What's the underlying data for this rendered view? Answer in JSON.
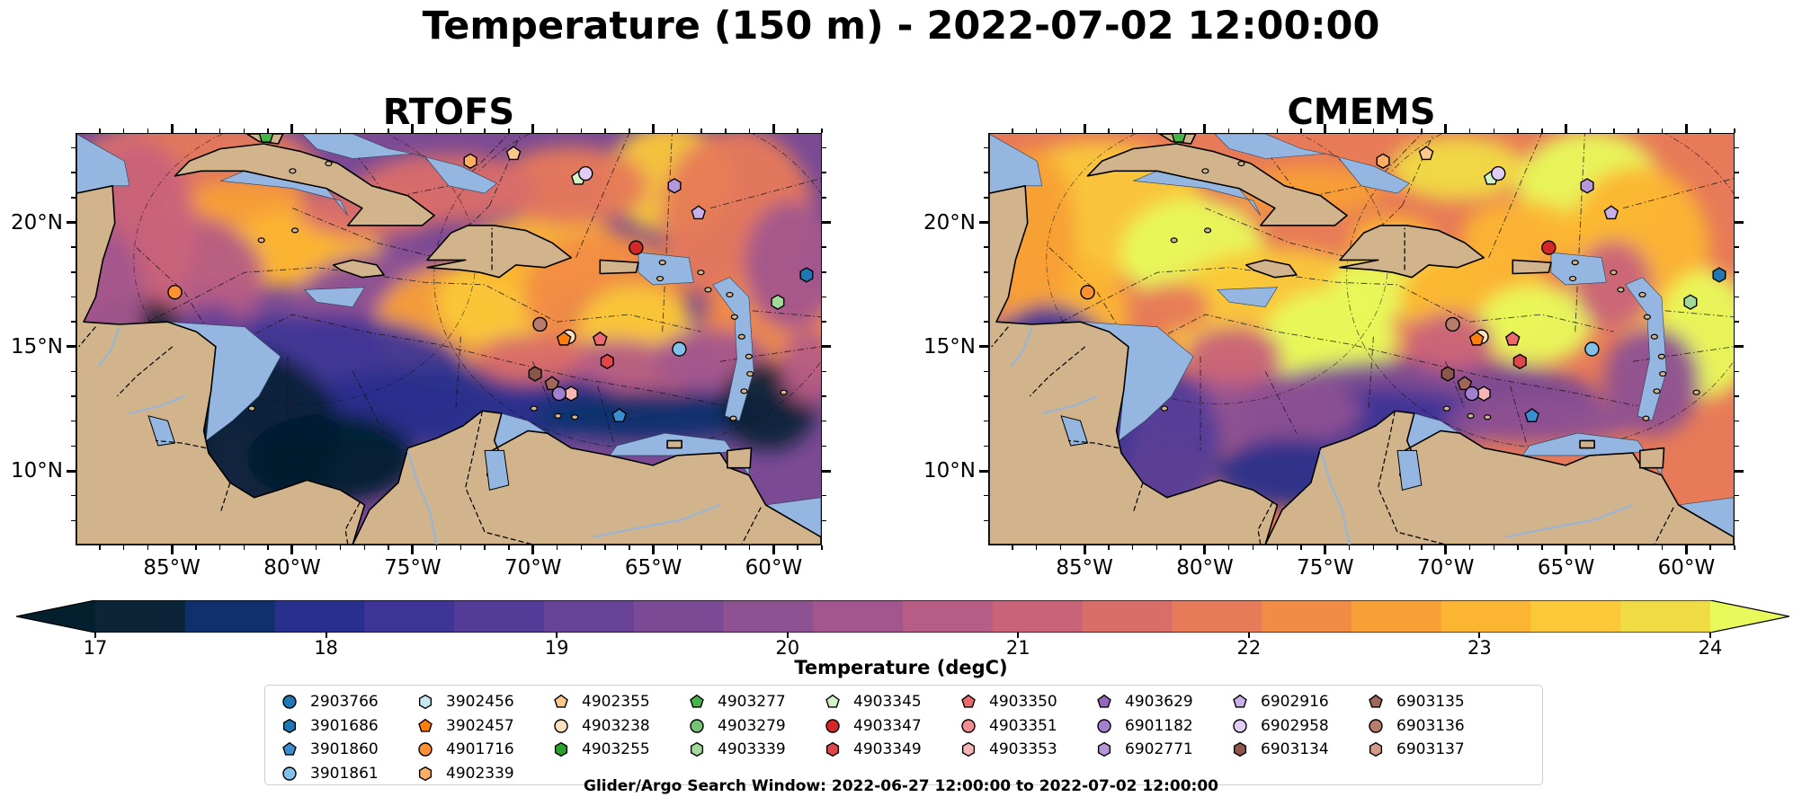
{
  "figure": {
    "title": "Temperature (150 m) - 2022-07-02 12:00:00",
    "search_window": "Glider/Argo Search Window: 2022-06-27 12:00:00 to 2022-07-02 12:00:00"
  },
  "panels": [
    {
      "title": "RTOFS",
      "model": "rtofs"
    },
    {
      "title": "CMEMS",
      "model": "cmems"
    }
  ],
  "axes": {
    "lat_ticks": [
      "20°N",
      "15°N",
      "10°N"
    ],
    "lat_values": [
      20,
      15,
      10
    ],
    "lon_ticks": [
      "85°W",
      "80°W",
      "75°W",
      "70°W",
      "65°W",
      "60°W"
    ],
    "lon_values": [
      -85,
      -80,
      -75,
      -70,
      -65,
      -60
    ],
    "lon_range": [
      -89,
      -58
    ],
    "lat_range": [
      7,
      23.6
    ]
  },
  "colors": {
    "ocean_shallow": "#94b6e0",
    "land": "#d2b48c",
    "rivers": "#9ab4d4"
  },
  "colorbar": {
    "label": "Temperature (degC)",
    "ticks": [
      "17",
      "18",
      "19",
      "20",
      "21",
      "22",
      "23",
      "24"
    ],
    "tick_values": [
      17,
      18,
      19,
      20,
      21,
      22,
      23,
      24
    ],
    "range": [
      17,
      24
    ],
    "extend": "both",
    "colormap": "thermal",
    "levels": [
      "#0b2438",
      "#10306d",
      "#282f8c",
      "#3e3596",
      "#533b98",
      "#674296",
      "#7a4a94",
      "#8e5192",
      "#a3568d",
      "#b65c85",
      "#c9637a",
      "#d96d6a",
      "#e77a58",
      "#f28c45",
      "#f89f36",
      "#fcb532",
      "#fac838",
      "#f1db44"
    ],
    "under_color": "#04202f",
    "over_color": "#e8fa5b"
  },
  "legend": {
    "items": [
      {
        "id": "2903766",
        "shape": "circle",
        "color": "#1f77b4"
      },
      {
        "id": "3901686",
        "shape": "hexagon",
        "color": "#1f77b4"
      },
      {
        "id": "3901860",
        "shape": "pentagon",
        "color": "#3a8fd0"
      },
      {
        "id": "3901861",
        "shape": "circle",
        "color": "#82c0ea"
      },
      {
        "id": "3902456",
        "shape": "hexagon",
        "color": "#c7e9f4"
      },
      {
        "id": "3902457",
        "shape": "pentagon",
        "color": "#ff7f0e"
      },
      {
        "id": "4901716",
        "shape": "circle",
        "color": "#fd9131"
      },
      {
        "id": "4902339",
        "shape": "hexagon",
        "color": "#fdae62"
      },
      {
        "id": "4902355",
        "shape": "pentagon",
        "color": "#fdc88b"
      },
      {
        "id": "4903238",
        "shape": "circle",
        "color": "#fde0bd"
      },
      {
        "id": "4903255",
        "shape": "hexagon",
        "color": "#2ca02c"
      },
      {
        "id": "4903277",
        "shape": "pentagon",
        "color": "#47b447"
      },
      {
        "id": "4903279",
        "shape": "circle",
        "color": "#74c476"
      },
      {
        "id": "4903339",
        "shape": "hexagon",
        "color": "#a1d99b"
      },
      {
        "id": "4903345",
        "shape": "pentagon",
        "color": "#d4f2c8"
      },
      {
        "id": "4903347",
        "shape": "circle",
        "color": "#d62728"
      },
      {
        "id": "4903349",
        "shape": "hexagon",
        "color": "#e0454a"
      },
      {
        "id": "4903350",
        "shape": "pentagon",
        "color": "#ea6a6d"
      },
      {
        "id": "4903351",
        "shape": "circle",
        "color": "#f28e91"
      },
      {
        "id": "4903353",
        "shape": "hexagon",
        "color": "#f8b5b5"
      },
      {
        "id": "4903629",
        "shape": "pentagon",
        "color": "#9467bd"
      },
      {
        "id": "6901182",
        "shape": "circle",
        "color": "#a27fd0"
      },
      {
        "id": "6902771",
        "shape": "hexagon",
        "color": "#b596db"
      },
      {
        "id": "6902916",
        "shape": "pentagon",
        "color": "#c8b0e8"
      },
      {
        "id": "6902958",
        "shape": "circle",
        "color": "#e0cdf3"
      },
      {
        "id": "6903134",
        "shape": "hexagon",
        "color": "#8c564b"
      },
      {
        "id": "6903135",
        "shape": "pentagon",
        "color": "#a1665a"
      },
      {
        "id": "6903136",
        "shape": "circle",
        "color": "#b87c6d"
      },
      {
        "id": "6903137",
        "shape": "hexagon",
        "color": "#d49a88"
      }
    ]
  },
  "floats": [
    {
      "id": "4903277",
      "lon": -81.1,
      "lat": 23.5
    },
    {
      "id": "4902339",
      "lon": -72.6,
      "lat": 22.5
    },
    {
      "id": "4902355",
      "lon": -70.8,
      "lat": 22.8
    },
    {
      "id": "4903345",
      "lon": -68.1,
      "lat": 21.8
    },
    {
      "id": "6902958",
      "lon": -67.8,
      "lat": 22.0
    },
    {
      "id": "6902771",
      "lon": -64.1,
      "lat": 21.5
    },
    {
      "id": "6902916",
      "lon": -63.1,
      "lat": 20.4
    },
    {
      "id": "4903347",
      "lon": -65.7,
      "lat": 19.0
    },
    {
      "id": "3901686",
      "lon": -58.6,
      "lat": 17.9
    },
    {
      "id": "4903339",
      "lon": -59.8,
      "lat": 16.8
    },
    {
      "id": "4901716",
      "lon": -84.9,
      "lat": 17.2
    },
    {
      "id": "6903136",
      "lon": -69.7,
      "lat": 15.9
    },
    {
      "id": "4903238",
      "lon": -68.5,
      "lat": 15.4
    },
    {
      "id": "3902457",
      "lon": -68.7,
      "lat": 15.3
    },
    {
      "id": "4903350",
      "lon": -67.2,
      "lat": 15.3
    },
    {
      "id": "4903349",
      "lon": -66.9,
      "lat": 14.4
    },
    {
      "id": "3901861",
      "lon": -63.9,
      "lat": 14.9
    },
    {
      "id": "6903134",
      "lon": -69.9,
      "lat": 13.9
    },
    {
      "id": "6903135",
      "lon": -69.2,
      "lat": 13.5
    },
    {
      "id": "4903353",
      "lon": -68.4,
      "lat": 13.1
    },
    {
      "id": "6901182",
      "lon": -68.9,
      "lat": 13.1
    },
    {
      "id": "3901860",
      "lon": -66.4,
      "lat": 12.2
    }
  ]
}
